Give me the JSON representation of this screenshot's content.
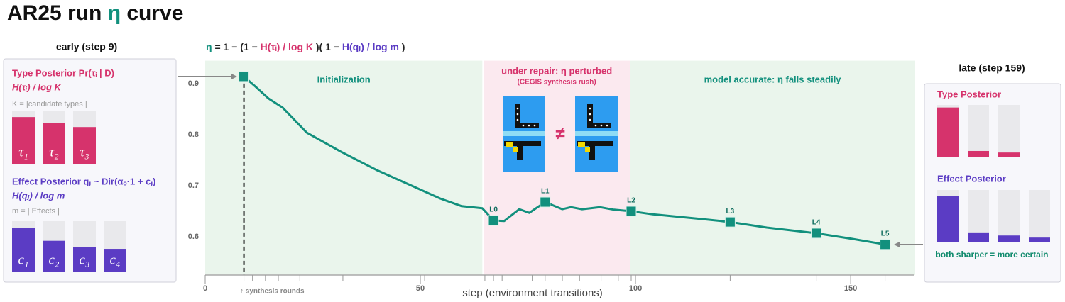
{
  "title": [
    {
      "text": "AR25 run "
    },
    {
      "text": "η",
      "color": "#12907d"
    },
    {
      "text": " curve"
    }
  ],
  "chart_data": [
    {
      "type": "line",
      "formula": [
        {
          "text": "η",
          "color": "#12907d"
        },
        {
          "text": " = 1 − (1 − ",
          "color": "#222222"
        },
        {
          "text": "H(τᵢ) / log K",
          "color": "#d6336c"
        },
        {
          "text": " )( 1 − ",
          "color": "#222222"
        },
        {
          "text": "H(qⱼ) / log m",
          "color": "#5b3cc4"
        },
        {
          "text": " )",
          "color": "#222222"
        }
      ],
      "xlabel": "step (environment transitions)",
      "xlim": [
        0,
        165
      ],
      "xticks": [
        0,
        50,
        100,
        150
      ],
      "ylim": [
        0.525,
        0.945
      ],
      "yticks": [
        0.6,
        0.7,
        0.8,
        0.9
      ],
      "color": "#12907d",
      "x": [
        9,
        11.7,
        14.7,
        18,
        23.6,
        31.5,
        39.8,
        48,
        54.6,
        59.6,
        64.4,
        67,
        69.5,
        73,
        75.3,
        79,
        81,
        83,
        85,
        87.6,
        91.7,
        95,
        99,
        104,
        114,
        122,
        130.5,
        142,
        150.3,
        158
      ],
      "values": [
        0.914,
        0.894,
        0.871,
        0.853,
        0.804,
        0.767,
        0.731,
        0.7,
        0.675,
        0.66,
        0.656,
        0.632,
        0.631,
        0.654,
        0.647,
        0.668,
        0.661,
        0.654,
        0.658,
        0.654,
        0.658,
        0.653,
        0.65,
        0.644,
        0.636,
        0.629,
        0.618,
        0.607,
        0.596,
        0.585
      ],
      "markers": {
        "x": [
          9,
          67,
          79,
          99,
          122,
          142,
          158
        ],
        "values": [
          0.914,
          0.632,
          0.668,
          0.65,
          0.629,
          0.607,
          0.585
        ],
        "labels": [
          null,
          "L0",
          "L1",
          "L2",
          "L3",
          "L4",
          "L5"
        ]
      },
      "regions": [
        {
          "label": "Initialization",
          "xlim": [
            0,
            64.4
          ],
          "color": "#eaf5ec",
          "label_color": "#12907d"
        },
        {
          "label": "under repair: η perturbed",
          "sublabel": "(CEGIS synthesis rush)",
          "xlim": [
            64.7,
            98.7
          ],
          "color": "#fbe9ef",
          "label_color": "#d6336c"
        },
        {
          "label": "model accurate: η falls steadily",
          "xlim": [
            98.7,
            165
          ],
          "color": "#eaf5ec",
          "label_color": "#12907d"
        }
      ],
      "annotation": "≠",
      "synthesis_rounds": {
        "label": "↑ synthesis rounds",
        "x": [
          9,
          11,
          14,
          17,
          22,
          32,
          51,
          65,
          67,
          69,
          76,
          79,
          83,
          87,
          92,
          96,
          99,
          122,
          142,
          158
        ]
      }
    },
    {
      "type": "posterior-panel",
      "heading": "early  (step 9)",
      "sections": [
        {
          "title": "Type Posterior Pr(τᵢ | D)",
          "subtitle": "H(τᵢ) / log K",
          "note": "K = |candidate types |",
          "color": "#d6336c",
          "categories": [
            "τ₁",
            "τ₂",
            "τ₃"
          ],
          "values": [
            0.89,
            0.78,
            0.7
          ]
        },
        {
          "title": "Effect Posterior qⱼ ~ Dir(αₒ·1 + cⱼ)",
          "subtitle": "H(qⱼ) / log m",
          "note": "m = | Effects |",
          "color": "#5b3cc4",
          "categories": [
            "c₁",
            "c₂",
            "c₃",
            "c₄"
          ],
          "values": [
            0.86,
            0.61,
            0.49,
            0.45
          ]
        }
      ]
    },
    {
      "type": "posterior-panel",
      "heading": "late  (step 159)",
      "sections": [
        {
          "title": "Type Posterior",
          "color": "#d6336c",
          "values": [
            0.95,
            0.11,
            0.08
          ]
        },
        {
          "title": "Effect Posterior",
          "color": "#5b3cc4",
          "values": [
            0.89,
            0.18,
            0.12,
            0.08
          ]
        }
      ],
      "footnote": "both sharper = more certain"
    }
  ]
}
